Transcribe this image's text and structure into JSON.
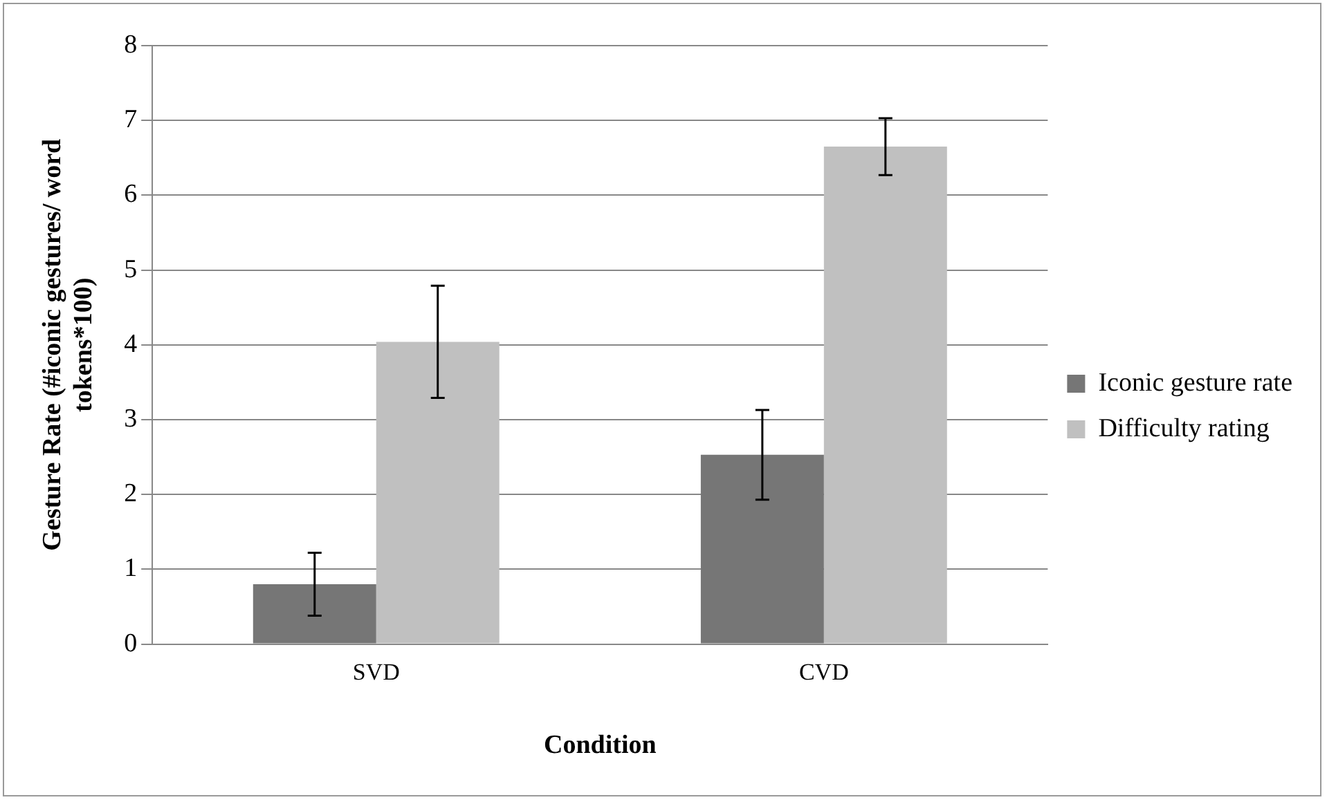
{
  "chart_data": {
    "type": "bar",
    "xlabel": "Condition",
    "ylabel": "Gesture Rate (#iconic gestures/ word tokens*100)",
    "categories": [
      "SVD",
      "CVD"
    ],
    "series": [
      {
        "name": "Iconic gesture rate",
        "color": "#767676",
        "values": [
          0.8,
          2.53
        ],
        "errors": [
          0.42,
          0.6
        ]
      },
      {
        "name": "Difficulty rating",
        "color": "#c0c0c0",
        "values": [
          4.04,
          6.65
        ],
        "errors": [
          0.75,
          0.38
        ]
      }
    ],
    "ylim": [
      0,
      8
    ],
    "yticks": [
      0,
      1,
      2,
      3,
      4,
      5,
      6,
      7,
      8
    ],
    "grid": "y",
    "legend": "right"
  }
}
